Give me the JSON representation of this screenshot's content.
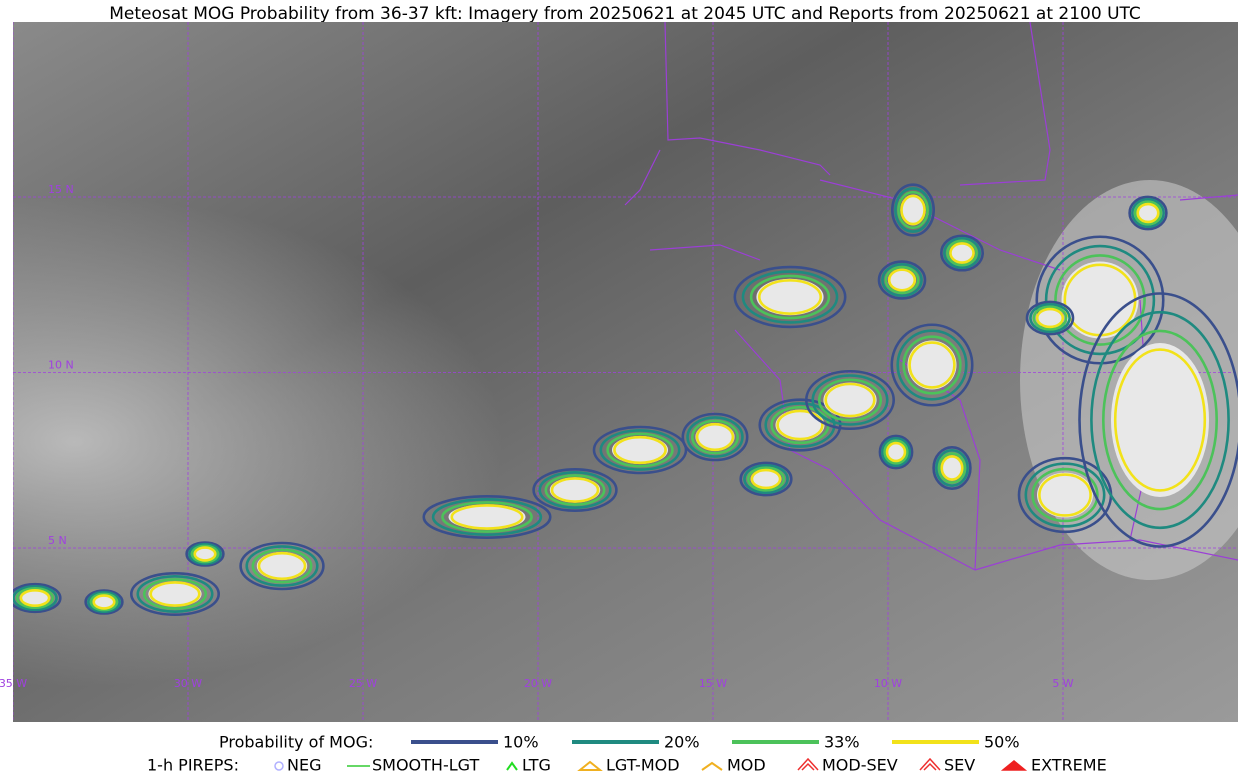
{
  "title": "Meteosat MOG Probability from 36-37 kft: Imagery from 20250621 at 2045 UTC and Reports from 20250621 at 2100 UTC",
  "map": {
    "longitude_labels": [
      "35 W",
      "30 W",
      "25 W",
      "20 W",
      "15 W",
      "10 W",
      "5 W"
    ],
    "latitude_labels": [
      "15 N",
      "10 N",
      "5 N"
    ]
  },
  "legend": {
    "probability": {
      "label": "Probability of MOG:",
      "items": [
        "10%",
        "20%",
        "33%",
        "50%"
      ]
    },
    "pireps": {
      "label": "1-h PIREPS:",
      "items": [
        "NEG",
        "SMOOTH-LGT",
        "LTG",
        "LGT-MOD",
        "MOD",
        "MOD-SEV",
        "SEV",
        "EXTREME"
      ]
    }
  }
}
